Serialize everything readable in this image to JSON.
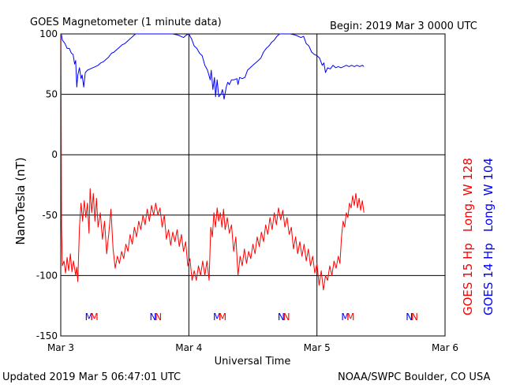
{
  "header": {
    "title": "GOES Magnetometer (1 minute data)",
    "begin": "Begin:  2019 Mar 3 0000 UTC"
  },
  "footer": {
    "updated": "Updated 2019 Mar  5 06:47:01 UTC",
    "credit": "NOAA/SWPC Boulder, CO USA"
  },
  "colors": {
    "goes15": "#ff0000",
    "goes14": "#0000ff",
    "axis": "#000000"
  },
  "chart_data": {
    "type": "line",
    "title": "GOES Magnetometer (1 minute data)",
    "xlabel": "Universal Time",
    "ylabel": "NanoTesla (nT)",
    "ylim": [
      -150,
      100
    ],
    "yticks": [
      100,
      50,
      0,
      -50,
      -100,
      -150
    ],
    "xlim": [
      0,
      72
    ],
    "x_units": "hours since 2019 Mar 3 0000 UTC",
    "xticks": [
      {
        "x": 0,
        "label": "Mar 3"
      },
      {
        "x": 24,
        "label": "Mar 4"
      },
      {
        "x": 48,
        "label": "Mar 5"
      },
      {
        "x": 72,
        "label": "Mar 6"
      }
    ],
    "grid": true,
    "legend_right": [
      {
        "text": "GOES 15 Hp",
        "color": "#ff0000"
      },
      {
        "text": "Long. W 128",
        "color": "#ff0000"
      },
      {
        "text": "GOES 14 Hp",
        "color": "#0000ff"
      },
      {
        "text": "Long. W 104",
        "color": "#0000ff"
      }
    ],
    "markers": [
      {
        "x": 5.3,
        "text": "M",
        "color": "#0000ff"
      },
      {
        "x": 6.3,
        "text": "M",
        "color": "#ff0000"
      },
      {
        "x": 17.3,
        "text": "N",
        "color": "#0000ff"
      },
      {
        "x": 18.3,
        "text": "N",
        "color": "#ff0000"
      },
      {
        "x": 29.3,
        "text": "M",
        "color": "#0000ff"
      },
      {
        "x": 30.3,
        "text": "M",
        "color": "#ff0000"
      },
      {
        "x": 41.3,
        "text": "N",
        "color": "#0000ff"
      },
      {
        "x": 42.3,
        "text": "N",
        "color": "#ff0000"
      },
      {
        "x": 53.3,
        "text": "M",
        "color": "#0000ff"
      },
      {
        "x": 54.3,
        "text": "M",
        "color": "#ff0000"
      },
      {
        "x": 65.3,
        "text": "N",
        "color": "#0000ff"
      },
      {
        "x": 66.3,
        "text": "N",
        "color": "#ff0000"
      }
    ],
    "series": [
      {
        "name": "GOES 14 Hp",
        "color": "#0000ff",
        "points": [
          [
            0.1,
            100
          ],
          [
            0.3,
            95
          ],
          [
            0.8,
            92
          ],
          [
            1.2,
            88
          ],
          [
            1.6,
            88
          ],
          [
            2,
            84
          ],
          [
            2.3,
            83
          ],
          [
            2.6,
            75
          ],
          [
            2.8,
            78
          ],
          [
            3.0,
            56
          ],
          [
            3.2,
            66
          ],
          [
            3.5,
            72
          ],
          [
            3.8,
            63
          ],
          [
            4.0,
            66
          ],
          [
            4.3,
            56
          ],
          [
            4.6,
            68
          ],
          [
            5.0,
            70
          ],
          [
            5.5,
            71
          ],
          [
            6,
            72
          ],
          [
            6.5,
            73
          ],
          [
            7,
            74
          ],
          [
            7.5,
            76
          ],
          [
            8,
            77
          ],
          [
            8.5,
            79
          ],
          [
            9,
            81
          ],
          [
            9.5,
            84
          ],
          [
            10,
            85
          ],
          [
            10.5,
            87
          ],
          [
            11,
            89
          ],
          [
            11.5,
            91
          ],
          [
            12,
            92
          ],
          [
            12.5,
            94
          ],
          [
            13,
            96
          ],
          [
            13.5,
            98
          ],
          [
            14,
            100
          ],
          [
            16,
            100
          ],
          [
            18,
            100
          ],
          [
            20,
            100
          ],
          [
            21,
            100
          ],
          [
            22,
            99
          ],
          [
            22.5,
            98
          ],
          [
            23,
            97
          ],
          [
            23.5,
            99
          ],
          [
            24,
            100
          ],
          [
            24.5,
            96
          ],
          [
            25,
            90
          ],
          [
            25.5,
            88
          ],
          [
            26,
            84
          ],
          [
            26.5,
            82
          ],
          [
            27,
            74
          ],
          [
            27.5,
            70
          ],
          [
            28,
            62
          ],
          [
            28.2,
            70
          ],
          [
            28.5,
            54
          ],
          [
            28.8,
            64
          ],
          [
            29,
            48
          ],
          [
            29.3,
            62
          ],
          [
            29.6,
            48
          ],
          [
            30,
            50
          ],
          [
            30.3,
            54
          ],
          [
            30.6,
            46
          ],
          [
            31,
            56
          ],
          [
            31.3,
            60
          ],
          [
            31.6,
            58
          ],
          [
            32,
            62
          ],
          [
            32.5,
            62
          ],
          [
            33,
            63
          ],
          [
            33.2,
            58
          ],
          [
            33.5,
            64
          ],
          [
            34,
            63
          ],
          [
            34.5,
            64
          ],
          [
            35,
            70
          ],
          [
            35.5,
            72
          ],
          [
            36,
            74
          ],
          [
            36.5,
            76
          ],
          [
            37,
            78
          ],
          [
            37.5,
            80
          ],
          [
            38,
            85
          ],
          [
            38.5,
            88
          ],
          [
            39,
            90
          ],
          [
            39.5,
            93
          ],
          [
            40,
            95
          ],
          [
            40.5,
            98
          ],
          [
            41,
            100
          ],
          [
            42,
            100
          ],
          [
            43,
            100
          ],
          [
            44,
            99
          ],
          [
            45,
            97
          ],
          [
            45.5,
            98
          ],
          [
            46,
            92
          ],
          [
            46.5,
            90
          ],
          [
            47,
            85
          ],
          [
            47.5,
            83
          ],
          [
            48,
            82
          ],
          [
            48.5,
            80
          ],
          [
            49,
            74
          ],
          [
            49.3,
            76
          ],
          [
            49.6,
            68
          ],
          [
            50,
            72
          ],
          [
            50.5,
            71
          ],
          [
            51,
            74
          ],
          [
            51.5,
            72
          ],
          [
            52,
            73
          ],
          [
            52.5,
            72
          ],
          [
            53,
            73
          ],
          [
            53.5,
            74
          ],
          [
            54,
            73
          ],
          [
            54.5,
            74
          ],
          [
            55,
            73
          ],
          [
            55.5,
            74
          ],
          [
            56,
            73
          ],
          [
            56.5,
            74
          ],
          [
            56.8,
            73
          ]
        ]
      },
      {
        "name": "GOES 15 Hp",
        "color": "#ff0000",
        "points": [
          [
            0.05,
            100
          ],
          [
            0.15,
            -60
          ],
          [
            0.3,
            -92
          ],
          [
            0.6,
            -88
          ],
          [
            0.9,
            -98
          ],
          [
            1.2,
            -85
          ],
          [
            1.5,
            -96
          ],
          [
            1.8,
            -82
          ],
          [
            2.1,
            -97
          ],
          [
            2.4,
            -88
          ],
          [
            2.8,
            -100
          ],
          [
            3.0,
            -93
          ],
          [
            3.2,
            -105
          ],
          [
            3.5,
            -60
          ],
          [
            3.8,
            -40
          ],
          [
            4.1,
            -55
          ],
          [
            4.4,
            -38
          ],
          [
            4.7,
            -52
          ],
          [
            5.0,
            -40
          ],
          [
            5.3,
            -65
          ],
          [
            5.5,
            -28
          ],
          [
            5.8,
            -48
          ],
          [
            6.1,
            -32
          ],
          [
            6.4,
            -55
          ],
          [
            6.7,
            -36
          ],
          [
            7.0,
            -60
          ],
          [
            7.4,
            -48
          ],
          [
            7.8,
            -70
          ],
          [
            8.2,
            -55
          ],
          [
            8.6,
            -82
          ],
          [
            9.0,
            -65
          ],
          [
            9.4,
            -45
          ],
          [
            9.8,
            -78
          ],
          [
            10.2,
            -94
          ],
          [
            10.6,
            -84
          ],
          [
            11.0,
            -90
          ],
          [
            11.4,
            -80
          ],
          [
            11.8,
            -86
          ],
          [
            12.2,
            -74
          ],
          [
            12.6,
            -80
          ],
          [
            13.0,
            -66
          ],
          [
            13.4,
            -74
          ],
          [
            13.8,
            -60
          ],
          [
            14.2,
            -68
          ],
          [
            14.6,
            -55
          ],
          [
            15.0,
            -62
          ],
          [
            15.4,
            -50
          ],
          [
            15.8,
            -58
          ],
          [
            16.2,
            -45
          ],
          [
            16.6,
            -55
          ],
          [
            17.0,
            -42
          ],
          [
            17.4,
            -50
          ],
          [
            17.8,
            -40
          ],
          [
            18.2,
            -50
          ],
          [
            18.6,
            -44
          ],
          [
            19.0,
            -60
          ],
          [
            19.4,
            -50
          ],
          [
            19.8,
            -70
          ],
          [
            20.2,
            -62
          ],
          [
            20.6,
            -75
          ],
          [
            21.0,
            -64
          ],
          [
            21.4,
            -72
          ],
          [
            21.8,
            -62
          ],
          [
            22.2,
            -76
          ],
          [
            22.6,
            -66
          ],
          [
            23.0,
            -80
          ],
          [
            23.4,
            -72
          ],
          [
            23.8,
            -92
          ],
          [
            24.2,
            -86
          ],
          [
            24.6,
            -104
          ],
          [
            25.0,
            -96
          ],
          [
            25.4,
            -104
          ],
          [
            25.8,
            -92
          ],
          [
            26.2,
            -100
          ],
          [
            26.6,
            -88
          ],
          [
            27.0,
            -100
          ],
          [
            27.4,
            -88
          ],
          [
            27.8,
            -104
          ],
          [
            28.1,
            -60
          ],
          [
            28.4,
            -68
          ],
          [
            28.7,
            -48
          ],
          [
            29.0,
            -60
          ],
          [
            29.3,
            -44
          ],
          [
            29.6,
            -55
          ],
          [
            29.9,
            -48
          ],
          [
            30.2,
            -60
          ],
          [
            30.5,
            -45
          ],
          [
            30.8,
            -62
          ],
          [
            31.2,
            -52
          ],
          [
            31.6,
            -65
          ],
          [
            32,
            -58
          ],
          [
            32.4,
            -80
          ],
          [
            32.8,
            -68
          ],
          [
            33.2,
            -100
          ],
          [
            33.6,
            -84
          ],
          [
            34.0,
            -92
          ],
          [
            34.4,
            -78
          ],
          [
            34.8,
            -90
          ],
          [
            35.2,
            -80
          ],
          [
            35.6,
            -86
          ],
          [
            36.0,
            -74
          ],
          [
            36.4,
            -82
          ],
          [
            36.8,
            -68
          ],
          [
            37.2,
            -76
          ],
          [
            37.6,
            -64
          ],
          [
            38.0,
            -72
          ],
          [
            38.4,
            -58
          ],
          [
            38.8,
            -66
          ],
          [
            39.2,
            -52
          ],
          [
            39.6,
            -62
          ],
          [
            40.0,
            -48
          ],
          [
            40.4,
            -58
          ],
          [
            40.8,
            -44
          ],
          [
            41.2,
            -54
          ],
          [
            41.6,
            -46
          ],
          [
            42.0,
            -60
          ],
          [
            42.4,
            -52
          ],
          [
            42.8,
            -66
          ],
          [
            43.2,
            -60
          ],
          [
            43.6,
            -78
          ],
          [
            44.0,
            -68
          ],
          [
            44.4,
            -82
          ],
          [
            44.8,
            -72
          ],
          [
            45.2,
            -84
          ],
          [
            45.6,
            -74
          ],
          [
            46.0,
            -88
          ],
          [
            46.4,
            -78
          ],
          [
            46.8,
            -92
          ],
          [
            47.2,
            -84
          ],
          [
            47.6,
            -98
          ],
          [
            48.0,
            -90
          ],
          [
            48.4,
            -108
          ],
          [
            48.8,
            -96
          ],
          [
            49.2,
            -112
          ],
          [
            49.6,
            -100
          ],
          [
            50.0,
            -104
          ],
          [
            50.4,
            -92
          ],
          [
            50.8,
            -100
          ],
          [
            51.2,
            -88
          ],
          [
            51.6,
            -94
          ],
          [
            52.0,
            -84
          ],
          [
            52.3,
            -90
          ],
          [
            52.6,
            -68
          ],
          [
            52.9,
            -55
          ],
          [
            53.2,
            -60
          ],
          [
            53.5,
            -48
          ],
          [
            53.8,
            -52
          ],
          [
            54.1,
            -40
          ],
          [
            54.4,
            -44
          ],
          [
            54.7,
            -34
          ],
          [
            55.0,
            -42
          ],
          [
            55.3,
            -32
          ],
          [
            55.6,
            -44
          ],
          [
            55.9,
            -36
          ],
          [
            56.2,
            -46
          ],
          [
            56.5,
            -38
          ],
          [
            56.8,
            -48
          ]
        ]
      }
    ]
  }
}
